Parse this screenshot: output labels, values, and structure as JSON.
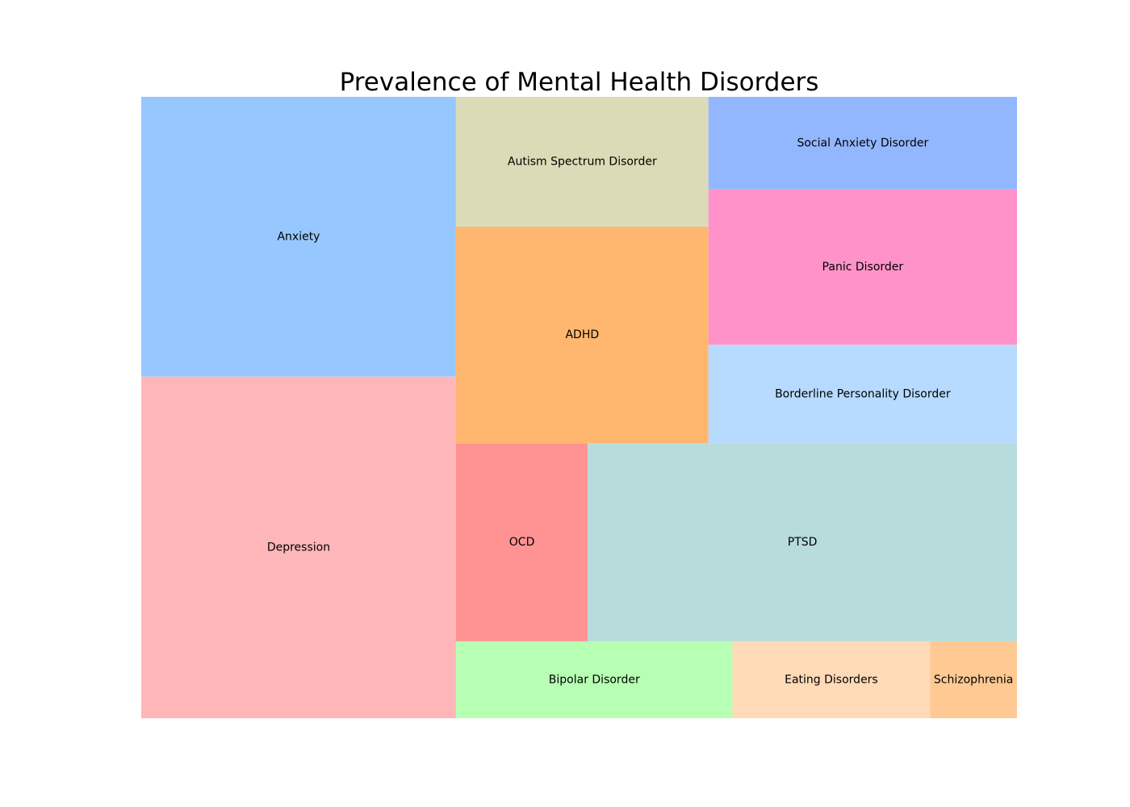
{
  "chart_data": {
    "type": "treemap",
    "title": "Prevalence of Mental Health Disorders",
    "items": [
      {
        "label": "Depression",
        "value": 17.7,
        "color": "#FFB6B9"
      },
      {
        "label": "Anxiety",
        "value": 14.5,
        "color": "#96C8FF"
      },
      {
        "label": "ADHD",
        "value": 9.0,
        "color": "#FFB76F"
      },
      {
        "label": "Autism Spectrum Disorder",
        "value": 5.4,
        "color": "#DBDBB8"
      },
      {
        "label": "OCD",
        "value": 4.3,
        "color": "#FF9393"
      },
      {
        "label": "PTSD",
        "value": 14.0,
        "color": "#B8DCDC"
      },
      {
        "label": "Social Anxiety Disorder",
        "value": 4.7,
        "color": "#93B7FF"
      },
      {
        "label": "Panic Disorder",
        "value": 7.9,
        "color": "#FF93C9"
      },
      {
        "label": "Borderline Personality Disorder",
        "value": 5.0,
        "color": "#B7DAFF"
      },
      {
        "label": "Bipolar Disorder",
        "value": 3.5,
        "color": "#B7FFB3"
      },
      {
        "label": "Eating Disorders",
        "value": 2.5,
        "color": "#FFDAB7"
      },
      {
        "label": "Schizophrenia",
        "value": 1.1,
        "color": "#FFC993"
      }
    ]
  }
}
